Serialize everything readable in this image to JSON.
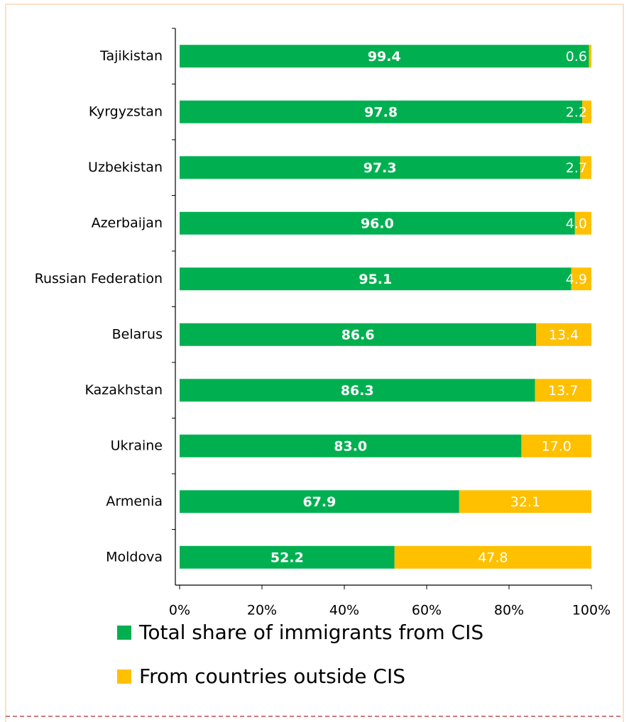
{
  "chart_data": {
    "type": "stacked-barh",
    "categories": [
      "Tajikistan",
      "Kyrgyzstan",
      "Uzbekistan",
      "Azerbaijan",
      "Russian Federation",
      "Belarus",
      "Kazakhstan",
      "Ukraine",
      "Armenia",
      "Moldova"
    ],
    "series": [
      {
        "name": "Total share of immigrants from CIS",
        "color": "#00b050",
        "values": [
          99.4,
          97.8,
          97.3,
          96.0,
          95.1,
          86.6,
          86.3,
          83.0,
          67.9,
          52.2
        ],
        "value_labels": [
          "99.4",
          "97.8",
          "97.3",
          "96.0",
          "95.1",
          "86.6",
          "86.3",
          "83.0",
          "67.9",
          "52.2"
        ]
      },
      {
        "name": "From countries outside CIS",
        "color": "#ffc000",
        "values": [
          0.6,
          2.2,
          2.7,
          4.0,
          4.9,
          13.4,
          13.7,
          17.0,
          32.1,
          47.8
        ],
        "value_labels": [
          "0.6",
          "2.2",
          "2.7",
          "4.0",
          "4.9",
          "13.4",
          "13.7",
          "17.0",
          "32.1",
          "47.8"
        ]
      }
    ],
    "xlim": [
      0,
      100
    ],
    "xticks": [
      {
        "value": 0,
        "label": "0%"
      },
      {
        "value": 20,
        "label": "20%"
      },
      {
        "value": 40,
        "label": "40%"
      },
      {
        "value": 60,
        "label": "60%"
      },
      {
        "value": 80,
        "label": "80%"
      },
      {
        "value": 100,
        "label": "100%"
      }
    ],
    "legend": "bottom"
  }
}
